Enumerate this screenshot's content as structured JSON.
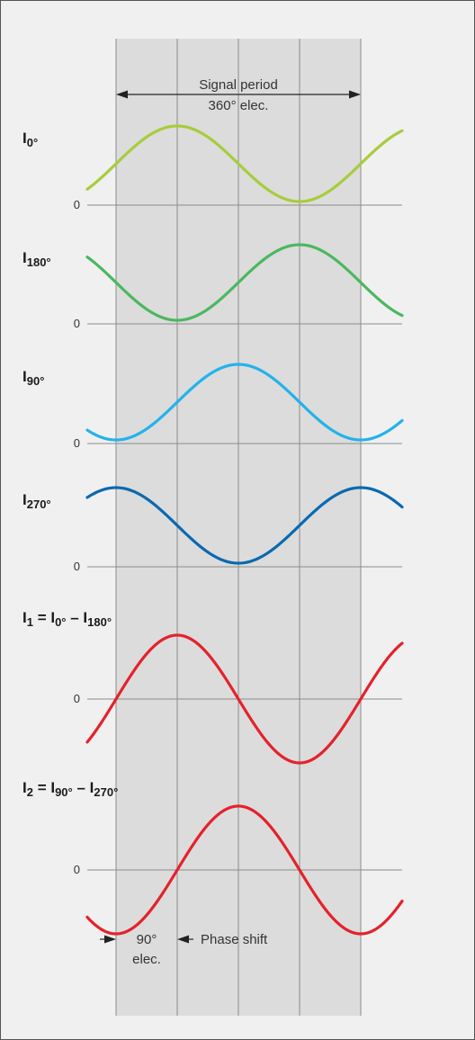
{
  "header": {
    "period_label_line1": "Signal period",
    "period_label_line2": "360° elec."
  },
  "colors": {
    "band": "#dcdcdc",
    "grid": "#8c8c8c",
    "axis": "#8c8c8c",
    "text": "#333333"
  },
  "zero_label": "0",
  "signals": [
    {
      "id": "i0",
      "label_base": "I",
      "label_sub": "0°",
      "label_rest": [],
      "color": "#a8cc3b",
      "phase_deg": 0,
      "amplitude": "single"
    },
    {
      "id": "i180",
      "label_base": "I",
      "label_sub": "180°",
      "label_rest": [],
      "color": "#4cb760",
      "phase_deg": 180,
      "amplitude": "single"
    },
    {
      "id": "i90",
      "label_base": "I",
      "label_sub": "90°",
      "label_rest": [],
      "color": "#24b2eb",
      "phase_deg": 90,
      "amplitude": "single"
    },
    {
      "id": "i270",
      "label_base": "I",
      "label_sub": "270°",
      "label_rest": [],
      "color": "#0a69b0",
      "phase_deg": 270,
      "amplitude": "single"
    },
    {
      "id": "i1",
      "label_base": "I",
      "label_sub": "1",
      "label_rest": [
        {
          "t": " = I",
          "sub": "0°"
        },
        {
          "t": " – I",
          "sub": "180°"
        }
      ],
      "color": "#e4222b",
      "phase_deg": 0,
      "amplitude": "double"
    },
    {
      "id": "i2",
      "label_base": "I",
      "label_sub": "2",
      "label_rest": [
        {
          "t": " = I",
          "sub": "90°"
        },
        {
          "t": " – I",
          "sub": "270°"
        }
      ],
      "color": "#e4222b",
      "phase_deg": 90,
      "amplitude": "double"
    }
  ],
  "phase_shift": {
    "value_line1": "90°",
    "value_line2": "elec.",
    "label": "Phase shift"
  }
}
